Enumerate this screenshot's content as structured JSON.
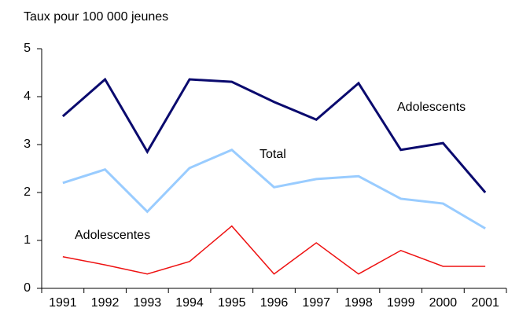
{
  "chart_data": {
    "type": "line",
    "title": "Taux pour 100 000 jeunes",
    "categories": [
      "1991",
      "1992",
      "1993",
      "1994",
      "1995",
      "1996",
      "1997",
      "1998",
      "1999",
      "2000",
      "2001"
    ],
    "series": [
      {
        "name": "Adolescents",
        "color": "#0a0a6e",
        "values": [
          3.59,
          4.36,
          2.85,
          4.36,
          4.31,
          3.89,
          3.52,
          4.28,
          2.89,
          3.03,
          2.0
        ]
      },
      {
        "name": "Total",
        "color": "#99ccff",
        "values": [
          2.2,
          2.48,
          1.6,
          2.51,
          2.89,
          2.11,
          2.28,
          2.34,
          1.87,
          1.77,
          1.25
        ]
      },
      {
        "name": "Adolescentes",
        "color": "#ee1111",
        "values": [
          0.66,
          0.49,
          0.3,
          0.56,
          1.3,
          0.3,
          0.95,
          0.3,
          0.79,
          0.46,
          0.46
        ]
      }
    ],
    "ylim": [
      0,
      5
    ],
    "yticks": [
      0,
      1,
      2,
      3,
      4,
      5
    ],
    "grid": false
  }
}
